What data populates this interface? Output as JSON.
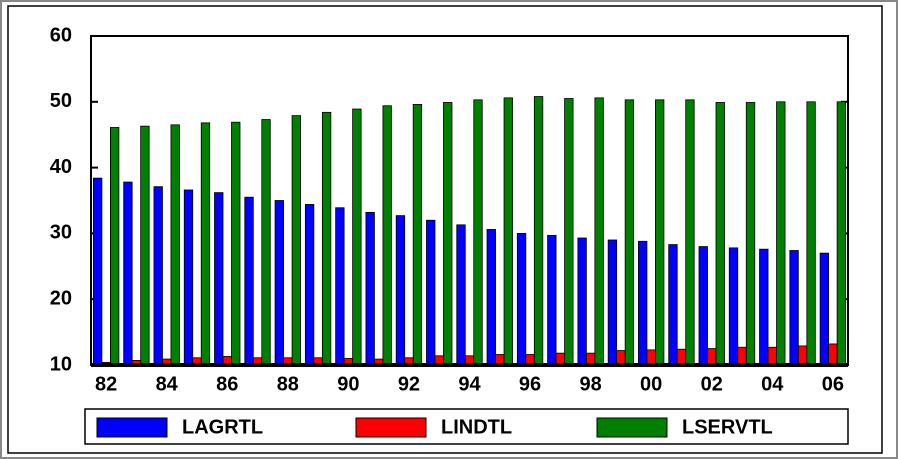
{
  "chart_data": {
    "type": "bar",
    "categories": [
      "82",
      null,
      "84",
      null,
      "86",
      null,
      "88",
      null,
      "90",
      null,
      "92",
      null,
      "94",
      null,
      "96",
      null,
      "98",
      null,
      "00",
      null,
      "02",
      null,
      "04",
      null,
      "06"
    ],
    "series": [
      {
        "name": "LAGRTL",
        "color": "#0000ff",
        "values": [
          38.4,
          37.8,
          37.1,
          36.6,
          36.2,
          35.5,
          35.0,
          34.4,
          33.9,
          33.2,
          32.7,
          32.0,
          31.3,
          30.6,
          30.0,
          29.7,
          29.3,
          29.0,
          28.8,
          28.3,
          28.0,
          27.8,
          27.6,
          27.4,
          27.0
        ]
      },
      {
        "name": "LINDTL",
        "color": "#ff0000",
        "values": [
          10.4,
          10.7,
          10.9,
          11.1,
          11.3,
          11.1,
          11.1,
          11.1,
          11.0,
          10.9,
          11.1,
          11.4,
          11.4,
          11.6,
          11.6,
          11.8,
          11.8,
          12.2,
          12.3,
          12.4,
          12.5,
          12.7,
          12.7,
          12.9,
          13.2
        ]
      },
      {
        "name": "LSERVTL",
        "color": "#008000",
        "values": [
          46.1,
          46.3,
          46.5,
          46.8,
          46.9,
          47.3,
          47.9,
          48.4,
          48.9,
          49.4,
          49.6,
          49.9,
          50.3,
          50.6,
          50.8,
          50.5,
          50.6,
          50.3,
          50.3,
          50.3,
          49.9,
          49.9,
          50.0,
          50.0,
          50.0
        ]
      }
    ],
    "ylim": [
      10,
      60
    ],
    "yticks": [
      10,
      20,
      30,
      40,
      50,
      60
    ],
    "legend": "bottom"
  }
}
